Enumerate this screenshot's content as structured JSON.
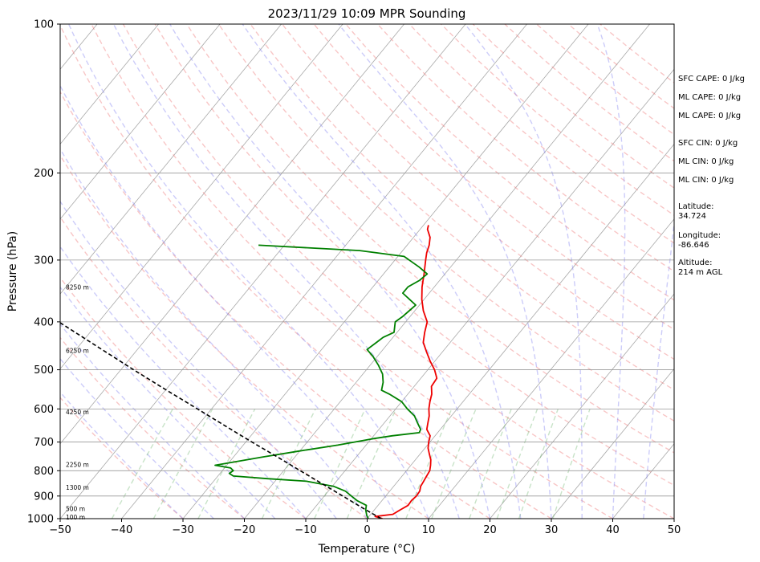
{
  "chart_data": {
    "type": "line",
    "title": "2023/11/29 10:09 MPR Sounding",
    "xlabel": "Temperature (°C)",
    "ylabel": "Pressure (hPa)",
    "xlim": [
      -50,
      50
    ],
    "ylim": [
      1000,
      100
    ],
    "y_scale": "log",
    "grid": true,
    "x_ticks": [
      "−50",
      "−40",
      "−30",
      "−20",
      "−10",
      "0",
      "10",
      "20",
      "30",
      "40",
      "50"
    ],
    "y_ticks": [
      {
        "p": 100,
        "label": "100"
      },
      {
        "p": 200,
        "label": "200"
      },
      {
        "p": 300,
        "label": "300"
      },
      {
        "p": 400,
        "label": "400"
      },
      {
        "p": 500,
        "label": "500"
      },
      {
        "p": 600,
        "label": "600"
      },
      {
        "p": 700,
        "label": "700"
      },
      {
        "p": 800,
        "label": "800"
      },
      {
        "p": 900,
        "label": "900"
      },
      {
        "p": 1000,
        "label": "1000"
      }
    ],
    "height_labels": [
      {
        "p": 993,
        "label": "100 m"
      },
      {
        "p": 955,
        "label": "500 m"
      },
      {
        "p": 865,
        "label": "1300 m"
      },
      {
        "p": 777,
        "label": "2250 m"
      },
      {
        "p": 608,
        "label": "4250 m"
      },
      {
        "p": 457,
        "label": "6250 m"
      },
      {
        "p": 340,
        "label": "8250 m"
      }
    ],
    "annotations": [
      "SFC CAPE: 0 J/kg",
      "ML CAPE: 0 J/kg",
      "ML CAPE: 0 J/kg",
      "SFC CIN: 0 J/kg",
      "ML CIN: 0 J/kg",
      "ML CIN: 0 J/kg",
      "Latitude:",
      "34.724",
      "Longitude:",
      "-86.646",
      "Altitude:",
      "214 m AGL"
    ],
    "colors": {
      "temperature": "#ee0000",
      "dewpoint": "#008000",
      "parcel": "#000000",
      "dry_adiabat": "#f08080",
      "moist_adiabat": "#8080f0",
      "mixing_ratio": "#60b060",
      "isotherm": "#999999"
    },
    "series": [
      {
        "style": "temperature",
        "points": [
          [
            1000,
            2.5
          ],
          [
            990,
            1.0
          ],
          [
            980,
            3.6
          ],
          [
            960,
            4.2
          ],
          [
            940,
            4.9
          ],
          [
            920,
            4.8
          ],
          [
            900,
            5.0
          ],
          [
            880,
            4.9
          ],
          [
            860,
            4.4
          ],
          [
            840,
            4.2
          ],
          [
            820,
            4.0
          ],
          [
            800,
            3.8
          ],
          [
            780,
            3.2
          ],
          [
            760,
            2.5
          ],
          [
            740,
            1.5
          ],
          [
            720,
            0.5
          ],
          [
            700,
            -0.2
          ],
          [
            680,
            -0.8
          ],
          [
            660,
            -2.2
          ],
          [
            640,
            -2.9
          ],
          [
            620,
            -3.6
          ],
          [
            600,
            -4.6
          ],
          [
            580,
            -5.4
          ],
          [
            560,
            -6.1
          ],
          [
            540,
            -7.2
          ],
          [
            520,
            -7.4
          ],
          [
            500,
            -8.9
          ],
          [
            480,
            -10.8
          ],
          [
            460,
            -12.6
          ],
          [
            440,
            -14.4
          ],
          [
            420,
            -15.5
          ],
          [
            400,
            -16.5
          ],
          [
            380,
            -18.6
          ],
          [
            360,
            -20.4
          ],
          [
            340,
            -22.0
          ],
          [
            320,
            -23.4
          ],
          [
            300,
            -25.0
          ],
          [
            290,
            -25.8
          ],
          [
            280,
            -26.4
          ],
          [
            270,
            -27.3
          ],
          [
            260,
            -28.8
          ],
          [
            255,
            -29.2
          ]
        ]
      },
      {
        "style": "dewpoint",
        "points": [
          [
            1000,
            0.2
          ],
          [
            985,
            -0.5
          ],
          [
            960,
            -1.4
          ],
          [
            940,
            -1.9
          ],
          [
            920,
            -4.0
          ],
          [
            900,
            -5.6
          ],
          [
            880,
            -7.2
          ],
          [
            860,
            -9.8
          ],
          [
            840,
            -14.9
          ],
          [
            830,
            -21.6
          ],
          [
            820,
            -27.5
          ],
          [
            810,
            -28.5
          ],
          [
            800,
            -28.2
          ],
          [
            790,
            -29.0
          ],
          [
            780,
            -31.9
          ],
          [
            770,
            -29.7
          ],
          [
            750,
            -25.1
          ],
          [
            730,
            -20.1
          ],
          [
            710,
            -14.6
          ],
          [
            690,
            -9.9
          ],
          [
            680,
            -7.0
          ],
          [
            670,
            -3.0
          ],
          [
            660,
            -3.2
          ],
          [
            650,
            -3.9
          ],
          [
            640,
            -4.6
          ],
          [
            620,
            -6.0
          ],
          [
            600,
            -8.1
          ],
          [
            580,
            -10.0
          ],
          [
            560,
            -13.0
          ],
          [
            550,
            -14.8
          ],
          [
            540,
            -15.2
          ],
          [
            530,
            -15.6
          ],
          [
            510,
            -16.8
          ],
          [
            490,
            -18.6
          ],
          [
            470,
            -20.7
          ],
          [
            455,
            -22.6
          ],
          [
            440,
            -22.0
          ],
          [
            430,
            -21.6
          ],
          [
            420,
            -20.5
          ],
          [
            400,
            -21.7
          ],
          [
            390,
            -21.2
          ],
          [
            370,
            -20.6
          ],
          [
            350,
            -24.3
          ],
          [
            340,
            -24.3
          ],
          [
            330,
            -23.3
          ],
          [
            320,
            -22.9
          ],
          [
            310,
            -25.1
          ],
          [
            295,
            -29.0
          ],
          [
            287,
            -37.0
          ],
          [
            280,
            -54.2
          ]
        ]
      },
      {
        "style": "parcel",
        "points": [
          [
            1000,
            2.3
          ],
          [
            990,
            1.4
          ],
          [
            975,
            0.0
          ],
          [
            950,
            -2.3
          ],
          [
            900,
            -7.0
          ],
          [
            850,
            -12.0
          ],
          [
            800,
            -17.3
          ],
          [
            750,
            -22.9
          ],
          [
            700,
            -29.0
          ],
          [
            650,
            -35.4
          ],
          [
            600,
            -42.3
          ],
          [
            550,
            -49.8
          ],
          [
            500,
            -57.9
          ],
          [
            450,
            -66.7
          ],
          [
            400,
            -76.5
          ],
          [
            350,
            -87.5
          ],
          [
            320,
            -94.6
          ]
        ]
      }
    ]
  }
}
